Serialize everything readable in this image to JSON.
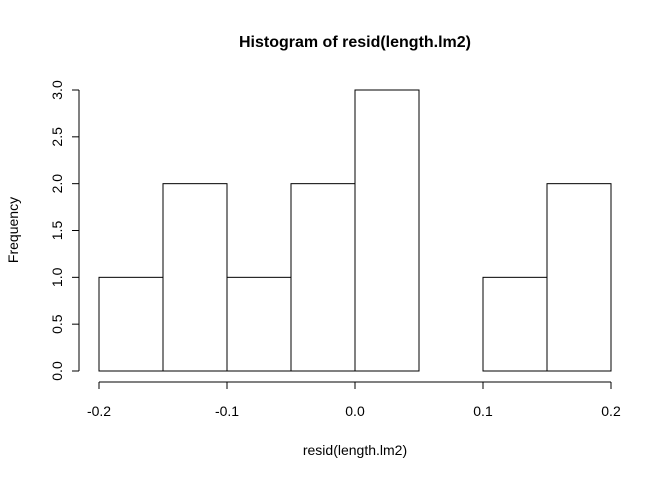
{
  "chart_data": {
    "type": "bar",
    "title": "Histogram of resid(length.lm2)",
    "xlabel": "resid(length.lm2)",
    "ylabel": "Frequency",
    "bins": [
      {
        "start": -0.2,
        "end": -0.15,
        "count": 1
      },
      {
        "start": -0.15,
        "end": -0.1,
        "count": 2
      },
      {
        "start": -0.1,
        "end": -0.05,
        "count": 1
      },
      {
        "start": -0.05,
        "end": 0.0,
        "count": 2
      },
      {
        "start": 0.0,
        "end": 0.05,
        "count": 3
      },
      {
        "start": 0.05,
        "end": 0.1,
        "count": 0
      },
      {
        "start": 0.1,
        "end": 0.15,
        "count": 1
      },
      {
        "start": 0.15,
        "end": 0.2,
        "count": 2
      }
    ],
    "xlim": [
      -0.2,
      0.2
    ],
    "ylim": [
      0,
      3
    ],
    "x_ticks": [
      -0.2,
      -0.1,
      0.0,
      0.1,
      0.2
    ],
    "x_tick_labels": [
      "-0.2",
      "-0.1",
      "0.0",
      "0.1",
      "0.2"
    ],
    "y_ticks": [
      0,
      0.5,
      1,
      1.5,
      2,
      2.5,
      3
    ],
    "y_tick_labels": [
      "0.0",
      "0.5",
      "1.0",
      "1.5",
      "2.0",
      "2.5",
      "3.0"
    ],
    "grid": false,
    "legend": "none",
    "bar_fill": "#ffffff",
    "bar_stroke": "#000000"
  }
}
